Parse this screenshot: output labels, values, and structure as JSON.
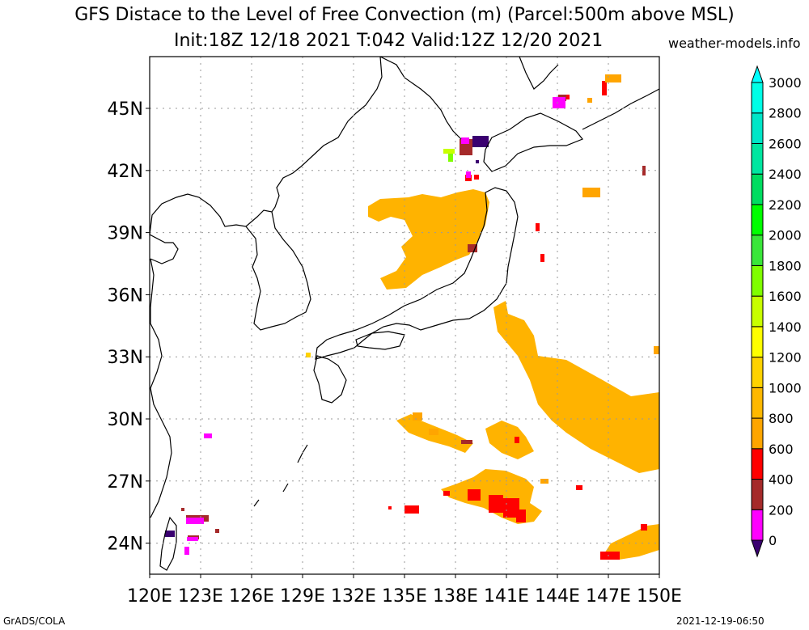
{
  "title": {
    "line1": "GFS Distace to the Level of Free Convection (m) (Parcel:500m above MSL)",
    "line2": "Init:18Z 12/18 2021 T:042 Valid:12Z 12/20 2021",
    "source": "weather-models.info"
  },
  "footer": {
    "left": "GrADS/COLA",
    "right": "2021-12-19-06:50"
  },
  "map": {
    "lon_range": [
      120,
      150
    ],
    "lat_range": [
      22.5,
      47.5
    ],
    "lat_ticks": [
      {
        "value": 24,
        "label": "24N"
      },
      {
        "value": 27,
        "label": "27N"
      },
      {
        "value": 30,
        "label": "30N"
      },
      {
        "value": 33,
        "label": "33N"
      },
      {
        "value": 36,
        "label": "36N"
      },
      {
        "value": 39,
        "label": "39N"
      },
      {
        "value": 42,
        "label": "42N"
      },
      {
        "value": 45,
        "label": "45N"
      }
    ],
    "lon_ticks": [
      {
        "value": 120,
        "label": "120E"
      },
      {
        "value": 123,
        "label": "123E"
      },
      {
        "value": 126,
        "label": "126E"
      },
      {
        "value": 129,
        "label": "129E"
      },
      {
        "value": 132,
        "label": "132E"
      },
      {
        "value": 135,
        "label": "135E"
      },
      {
        "value": 138,
        "label": "138E"
      },
      {
        "value": 141,
        "label": "141E"
      },
      {
        "value": 144,
        "label": "144E"
      },
      {
        "value": 147,
        "label": "147E"
      },
      {
        "value": 150,
        "label": "150E"
      }
    ],
    "gridlines": true
  },
  "colorbar": {
    "labels": [
      "0",
      "200",
      "400",
      "600",
      "800",
      "1000",
      "1200",
      "1400",
      "1600",
      "1800",
      "2000",
      "2200",
      "2400",
      "2600",
      "2800",
      "3000"
    ],
    "colors": [
      "#3a0070",
      "#ff00ff",
      "#a52a2a",
      "#ff0000",
      "#ffa500",
      "#ffb800",
      "#ffd200",
      "#ffff00",
      "#c8ff00",
      "#7fff00",
      "#39e639",
      "#00ff00",
      "#00dd60",
      "#00e6a0",
      "#00e6c8",
      "#00ffe6",
      "#00ffff"
    ]
  },
  "chart_data": {
    "type": "heatmap",
    "units": "m",
    "categories": [
      "0-200",
      "200-400",
      "400-600",
      "600-800",
      "800-1000",
      "1000-1200",
      "1200-1400",
      "1400-1600",
      "1600-1800",
      ">3000"
    ],
    "regions": [
      {
        "value_class": "800-1000",
        "lon": [
          134.0,
          140.5
        ],
        "lat": [
          35.5,
          40.5
        ]
      },
      {
        "value_class": "800-1000",
        "lon": [
          139.5,
          140.8
        ],
        "lat": [
          39.5,
          41.5
        ]
      },
      {
        "value_class": "800-1000",
        "lon": [
          141.0,
          150.0
        ],
        "lat": [
          27.0,
          35.5
        ]
      },
      {
        "value_class": "800-1000",
        "lon": [
          137.0,
          142.5
        ],
        "lat": [
          25.0,
          27.0
        ]
      },
      {
        "value_class": "800-1000",
        "lon": [
          145.5,
          150.0
        ],
        "lat": [
          22.8,
          24.8
        ]
      },
      {
        "value_class": "600-800",
        "lon": [
          139.0,
          142.0
        ],
        "lat": [
          25.0,
          26.0
        ]
      },
      {
        "value_class": "600-800",
        "lon": [
          138.2,
          138.8
        ],
        "lat": [
          37.0,
          37.6
        ]
      },
      {
        "value_class": "0-400",
        "lon": [
          138.3,
          139.6
        ],
        "lat": [
          42.5,
          43.3
        ]
      },
      {
        "value_class": "1400-1800",
        "lon": [
          137.8,
          138.4
        ],
        "lat": [
          42.3,
          42.8
        ]
      },
      {
        "value_class": "200-400",
        "lon": [
          122.8,
          123.8
        ],
        "lat": [
          24.5,
          25.2
        ]
      },
      {
        "value_class": "200-400",
        "lon": [
          143.6,
          144.3
        ],
        "lat": [
          45.0,
          45.5
        ]
      }
    ]
  }
}
